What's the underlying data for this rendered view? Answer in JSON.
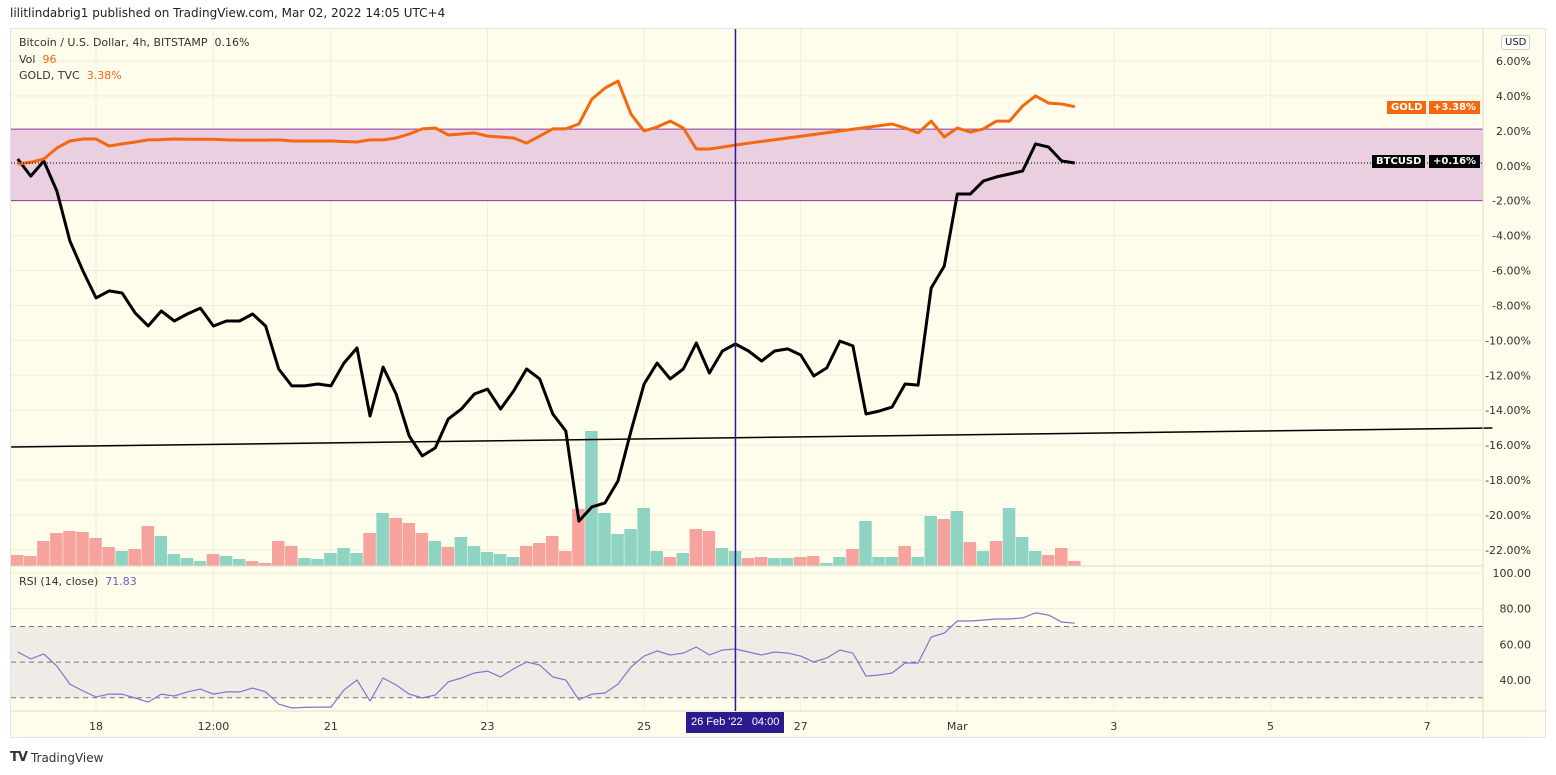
{
  "header": {
    "published": "lilitlindabrig1 published on TradingView.com, Mar 02, 2022 14:05 UTC+4"
  },
  "legend": {
    "symbol": "Bitcoin / U.S. Dollar, 4h, BITSTAMP",
    "symbol_change": "0.16%",
    "vol_label": "Vol",
    "vol_value": "96",
    "gold_label": "GOLD, TVC",
    "gold_change": "3.38%",
    "rsi_label": "RSI (14, close)",
    "rsi_value": "71.83"
  },
  "axis": {
    "currency": "USD"
  },
  "tags": {
    "gold_name": "GOLD",
    "gold_value": "+3.38%",
    "btc_name": "BTCUSD",
    "btc_value": "+0.16%"
  },
  "crosshair": {
    "time": "2022-02-26 04:00",
    "label_date": "26 Feb '22",
    "label_time": "04:00"
  },
  "footer": {
    "brand": "TradingView"
  },
  "colors": {
    "btc": "#000000",
    "gold": "#f4690f",
    "up": "#8fd3c3",
    "down": "#f5a39c",
    "rsi": "#8e6fd0",
    "crosshair": "#2a1b8f",
    "band": "#e9cfe0",
    "band_border": "#8e3a9e",
    "bg": "#fefcea"
  },
  "chart_data": [
    {
      "type": "line",
      "title": "",
      "ylim": [
        -23,
        7
      ],
      "y_ticks": [
        "6.00%",
        "4.00%",
        "2.00%",
        "0.00%",
        "-2.00%",
        "-4.00%",
        "-6.00%",
        "-8.00%",
        "-10.00%",
        "-12.00%",
        "-14.00%",
        "-16.00%",
        "-18.00%",
        "-20.00%",
        "-22.00%"
      ],
      "y_tick_values": [
        6,
        4,
        2,
        0,
        -2,
        -4,
        -6,
        -8,
        -10,
        -12,
        -14,
        -16,
        -18,
        -20,
        -22
      ],
      "x_ticks": [
        {
          "label": "18",
          "time": "2022-02-18 00:00"
        },
        {
          "label": "12:00",
          "time": "2022-02-19 12:00"
        },
        {
          "label": "21",
          "time": "2022-02-21 00:00"
        },
        {
          "label": "23",
          "time": "2022-02-23 00:00"
        },
        {
          "label": "25",
          "time": "2022-02-25 00:00"
        },
        {
          "label": "27",
          "time": "2022-02-27 00:00"
        },
        {
          "label": "Mar",
          "time": "2022-03-01 00:00"
        },
        {
          "label": "3",
          "time": "2022-03-03 00:00"
        },
        {
          "label": "5",
          "time": "2022-03-05 00:00"
        },
        {
          "label": "7",
          "time": "2022-03-07 00:00"
        }
      ],
      "start": "2022-02-17 00:00",
      "interval_hours": 4,
      "series": [
        {
          "name": "BTCUSD",
          "unit": "%",
          "values": [
            0.39,
            -0.59,
            0.27,
            -1.45,
            -4.31,
            -6.03,
            -7.57,
            -7.17,
            -7.29,
            -8.43,
            -9.18,
            -8.32,
            -8.89,
            -8.49,
            -8.15,
            -9.18,
            -8.89,
            -8.89,
            -8.49,
            -9.18,
            -11.64,
            -12.61,
            -12.61,
            -12.5,
            -12.61,
            -11.3,
            -10.44,
            -14.33,
            -11.53,
            -13.07,
            -15.48,
            -16.62,
            -16.16,
            -14.5,
            -13.93,
            -13.07,
            -12.79,
            -13.93,
            -12.9,
            -11.64,
            -12.21,
            -14.22,
            -15.19,
            -20.35,
            -19.54,
            -19.31,
            -18.05,
            -15.19,
            -12.5,
            -11.3,
            -12.21,
            -11.64,
            -10.15,
            -11.87,
            -10.61,
            -10.21,
            -10.61,
            -11.18,
            -10.61,
            -10.49,
            -10.84,
            -12.04,
            -11.58,
            -10.04,
            -10.32,
            -14.22,
            -14.05,
            -13.82,
            -12.5,
            -12.56,
            -7.0,
            -5.74,
            -1.62,
            -1.62,
            -0.87,
            -0.64,
            -0.47,
            -0.3,
            1.25,
            1.07,
            0.27,
            0.16
          ]
        },
        {
          "name": "GOLD",
          "unit": "%",
          "values": [
            0.1,
            0.2,
            0.39,
            1.02,
            1.42,
            1.53,
            1.53,
            1.13,
            1.25,
            1.36,
            1.48,
            1.5,
            1.53,
            1.52,
            1.52,
            1.52,
            1.48,
            1.47,
            1.47,
            1.47,
            1.48,
            1.42,
            1.42,
            1.42,
            1.42,
            1.39,
            1.36,
            1.48,
            1.48,
            1.59,
            1.82,
            2.11,
            2.16,
            1.76,
            1.82,
            1.88,
            1.7,
            1.65,
            1.59,
            1.3,
            1.7,
            2.11,
            2.11,
            2.39,
            3.82,
            4.45,
            4.85,
            2.96,
            1.99,
            2.22,
            2.56,
            2.16,
            0.96,
            0.96,
            1.07,
            1.19,
            null,
            null,
            null,
            null,
            null,
            null,
            null,
            null,
            null,
            null,
            null,
            2.39,
            2.16,
            1.88,
            2.56,
            1.65,
            2.16,
            1.93,
            2.11,
            2.56,
            2.56,
            3.42,
            4.0,
            3.59,
            3.54,
            3.38
          ]
        }
      ],
      "range_band": {
        "from": -2.0,
        "to": 2.1
      },
      "trend_line": {
        "from": {
          "time": "2022-02-16 22:00",
          "value": -16.11
        },
        "to": {
          "time": "2022-03-07 20:00",
          "value": -15.02
        }
      }
    },
    {
      "type": "bar",
      "name": "Vol",
      "unit": "relative",
      "values": [
        11,
        10,
        25,
        33,
        35,
        34,
        28,
        19,
        15,
        17,
        40,
        30,
        12,
        8,
        5,
        12,
        10,
        7,
        5,
        3,
        25,
        20,
        8,
        7,
        13,
        18,
        13,
        33,
        53,
        48,
        43,
        33,
        25,
        19,
        29,
        20,
        14,
        12,
        9,
        20,
        23,
        30,
        15,
        57,
        135,
        53,
        32,
        37,
        58,
        15,
        9,
        13,
        37,
        35,
        18,
        15,
        8,
        9,
        8,
        8,
        9,
        10,
        3,
        9,
        17,
        45,
        9,
        9,
        20,
        9,
        50,
        47,
        55,
        24,
        15,
        25,
        58,
        29,
        15,
        11,
        18,
        5
      ],
      "direction": [
        "down",
        "down",
        "down",
        "down",
        "down",
        "down",
        "down",
        "down",
        "up",
        "down",
        "down",
        "up",
        "up",
        "up",
        "up",
        "down",
        "up",
        "up",
        "down",
        "down",
        "down",
        "down",
        "up",
        "up",
        "up",
        "up",
        "up",
        "down",
        "up",
        "down",
        "down",
        "down",
        "up",
        "down",
        "up",
        "up",
        "up",
        "up",
        "up",
        "down",
        "down",
        "down",
        "down",
        "down",
        "up",
        "up",
        "up",
        "up",
        "up",
        "up",
        "down",
        "up",
        "down",
        "down",
        "up",
        "up",
        "down",
        "down",
        "up",
        "up",
        "down",
        "down",
        "up",
        "up",
        "down",
        "up",
        "up",
        "up",
        "down",
        "up",
        "up",
        "down",
        "up",
        "down",
        "up",
        "down",
        "up",
        "up",
        "up",
        "down",
        "down",
        "down"
      ]
    },
    {
      "type": "line",
      "name": "RSI (14, close)",
      "ylim": [
        20,
        100
      ],
      "y_ticks": [
        "100.00",
        "80.00",
        "60.00",
        "40.00"
      ],
      "y_tick_values": [
        100,
        80,
        60,
        40
      ],
      "levels": [
        70,
        50,
        30
      ],
      "start": "2022-02-17 00:00",
      "interval_hours": 4,
      "values": [
        55.7,
        51.8,
        54.6,
        47.8,
        37.7,
        33.8,
        30.5,
        32.1,
        32.1,
        29.9,
        27.6,
        32.1,
        31.0,
        33.3,
        34.9,
        32.1,
        33.3,
        33.3,
        35.5,
        33.3,
        26.5,
        24.3,
        24.6,
        24.8,
        24.8,
        34.4,
        40.0,
        28.2,
        41.1,
        37.2,
        32.1,
        29.9,
        31.6,
        38.9,
        41.1,
        43.9,
        45.0,
        41.7,
        46.2,
        50.1,
        48.4,
        41.7,
        40.0,
        28.8,
        32.1,
        32.7,
        37.7,
        47.3,
        53.4,
        56.3,
        54.0,
        55.1,
        58.5,
        54.0,
        56.8,
        57.4,
        55.7,
        54.0,
        55.7,
        55.1,
        53.4,
        50.1,
        52.3,
        56.8,
        55.1,
        42.2,
        42.8,
        43.9,
        49.5,
        49.5,
        64.1,
        66.3,
        73.1,
        73.1,
        73.6,
        74.2,
        74.2,
        74.8,
        77.6,
        76.4,
        72.5,
        71.83
      ]
    }
  ]
}
